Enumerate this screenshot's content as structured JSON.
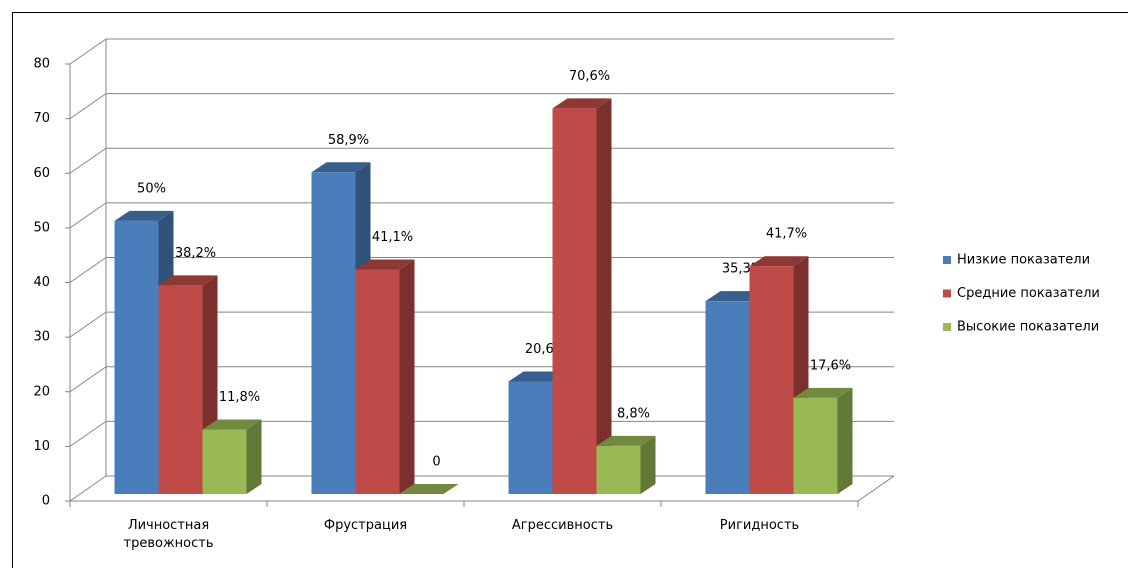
{
  "chart_data": {
    "type": "bar3d",
    "categories": [
      "Личностная тревожность",
      "Фрустрация",
      "Агрессивность",
      "Ригидность"
    ],
    "series": [
      {
        "name": "Низкие показатели",
        "color": "#4a7ebb",
        "values": [
          50,
          58.9,
          20.6,
          35.3
        ],
        "value_labels": [
          "50%",
          "58,9%",
          "20,6%",
          "35,3%"
        ]
      },
      {
        "name": "Средние показатели",
        "color": "#be4b48",
        "values": [
          38.2,
          41.1,
          70.6,
          41.7
        ],
        "value_labels": [
          "38,2%",
          "41,1%",
          "70,6%",
          "41,7%"
        ]
      },
      {
        "name": "Высокие показатели",
        "color": "#98b954",
        "values": [
          11.8,
          0,
          8.8,
          17.6
        ],
        "value_labels": [
          "11,8%",
          "0",
          "8,8%",
          "17,6%"
        ]
      }
    ],
    "ylim": [
      0,
      80
    ],
    "yticks": [
      0,
      10,
      20,
      30,
      40,
      50,
      60,
      70,
      80
    ],
    "grid": true,
    "legend": "right"
  }
}
